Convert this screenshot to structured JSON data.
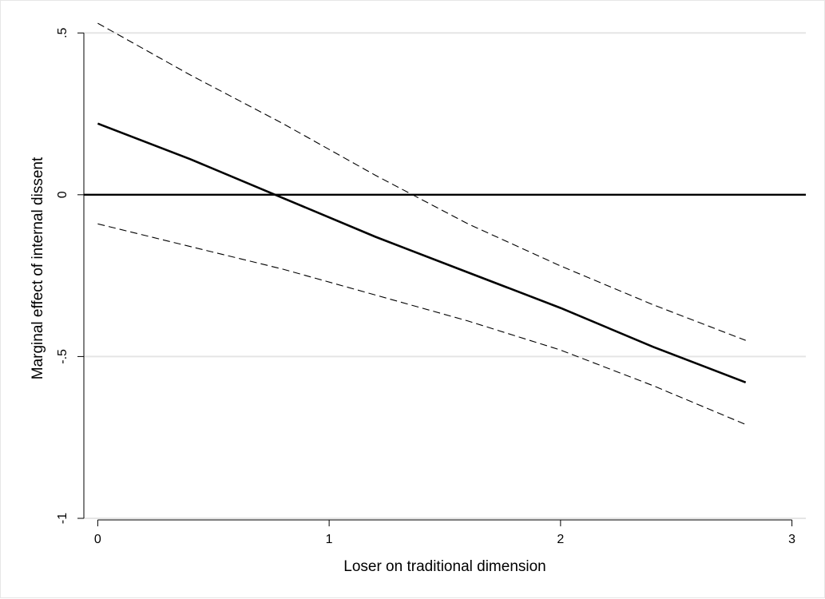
{
  "chart_data": {
    "type": "line",
    "xlabel": "Loser on traditional dimension",
    "ylabel": "Marginal effect of internal dissent",
    "xlim": [
      -0.06,
      3.06
    ],
    "ylim": [
      -1.0,
      0.55
    ],
    "x_ticks": [
      0,
      1,
      2,
      3
    ],
    "x_tick_labels": [
      "0",
      "1",
      "2",
      "3"
    ],
    "y_ticks": [
      -1,
      -0.5,
      0,
      0.5
    ],
    "y_tick_labels": [
      "-1",
      "-.5",
      "0",
      ".5"
    ],
    "grid": "horizontal",
    "legend": "none",
    "reference_line_y": 0,
    "x": [
      0,
      0.4,
      0.8,
      1.2,
      1.6,
      2.0,
      2.4,
      2.8
    ],
    "series": [
      {
        "style": "solid",
        "values": [
          0.22,
          0.11,
          -0.01,
          -0.13,
          -0.24,
          -0.35,
          -0.47,
          -0.58
        ]
      },
      {
        "style": "dashed",
        "values": [
          0.53,
          0.37,
          0.22,
          0.06,
          -0.09,
          -0.22,
          -0.34,
          -0.45
        ]
      },
      {
        "style": "dashed",
        "values": [
          -0.09,
          -0.16,
          -0.23,
          -0.31,
          -0.39,
          -0.48,
          -0.59,
          -0.71
        ]
      }
    ]
  }
}
